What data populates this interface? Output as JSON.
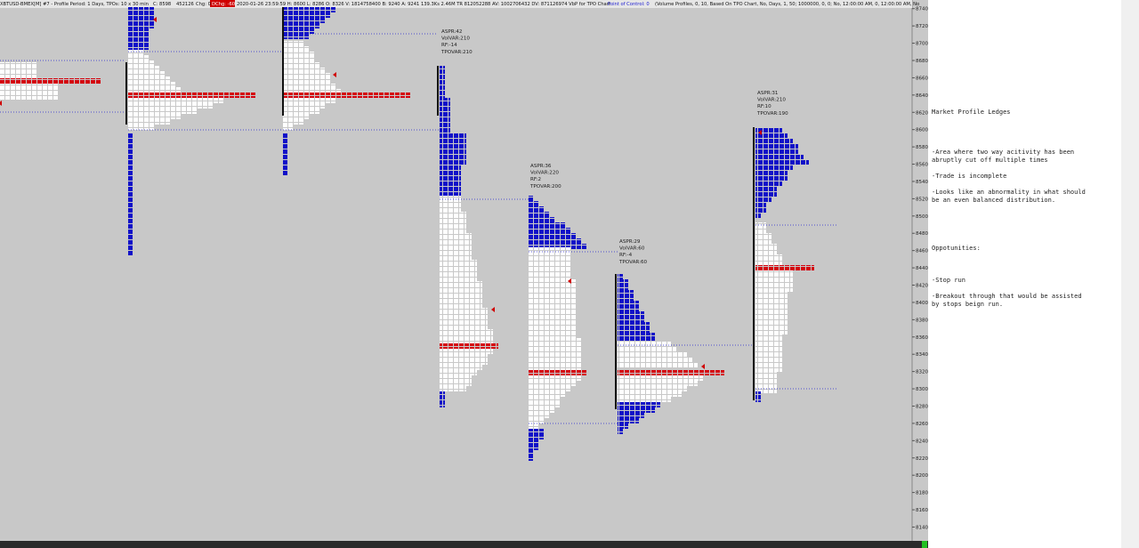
{
  "header": {
    "parts": [
      "XBTUSD-BMEX[M] #7 - Profile Period: 1 Days, TPOs: 10 x 30 min",
      "C: 8598",
      "452126",
      "Chg: 0",
      "DChg: -60",
      "2020-01-26 23:59:59 H: 8600 L: 8286 O: 8326 V: 1814758400 B: 9240 A: 9241 139.3Ks 2.46M TR 812052288 AV: 1002706432 DV: 871126974 VbP for TPO Chart",
      "Point of Control: 0",
      "(Volume Profiles, 0, 10, Based On TPO Chart, No, Days, 1, 50; 1000000, 0, 0; No, 12:00:00 AM, 0, 12:00:00 AM, No"
    ]
  },
  "price_axis": {
    "lim": [
      8750,
      8124
    ],
    "ticks": [
      8740,
      8720,
      8700,
      8680,
      8660,
      8640,
      8620,
      8600,
      8580,
      8560,
      8540,
      8520,
      8500,
      8480,
      8460,
      8440,
      8420,
      8400,
      8380,
      8360,
      8340,
      8320,
      8300,
      8280,
      8260,
      8240,
      8220,
      8200,
      8180,
      8160,
      8140
    ]
  },
  "annotations": [
    {
      "lines": [
        "ASPR:42",
        "VolVAR:210",
        "RF:-14",
        "TPOVAR:210"
      ]
    },
    {
      "lines": [
        "ASPR:36",
        "VolVAR:220",
        "RF:2",
        "TPOVAR:200"
      ]
    },
    {
      "lines": [
        "ASPR:29",
        "VolVAR:60",
        "RF:-4",
        "TPOVAR:60"
      ]
    },
    {
      "lines": [
        "ASPR:31",
        "VolVAR:210",
        "RF:10",
        "TPOVAR:190"
      ]
    }
  ],
  "notes": {
    "title": "Market Profile Ledges",
    "lines": [
      "-Area where two way acitivity has been",
      "abruptly cut off multiple times",
      "-Trade is incomplete",
      "-Looks like an abnormality in what should",
      "be an even balanced distribution.",
      "Oppotunities:",
      "-Stop run",
      "-Breakout through that would be assisted",
      "by stops beign run."
    ]
  }
}
